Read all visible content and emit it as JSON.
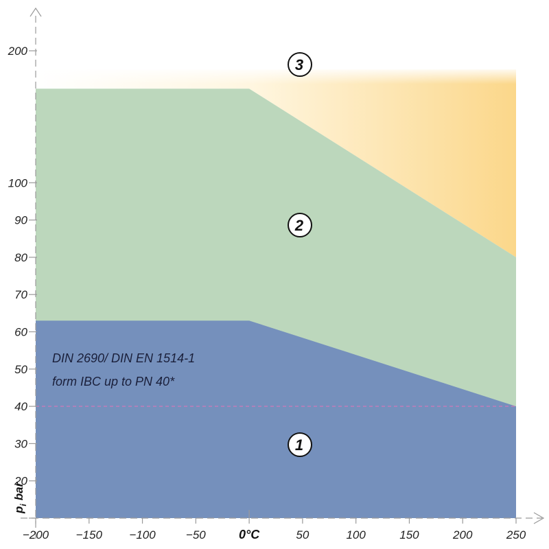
{
  "chart_data": {
    "type": "area",
    "x_ticks": [
      "−200",
      "−150",
      "−100",
      "−50",
      "0°C",
      "50",
      "100",
      "150",
      "200",
      "250"
    ],
    "x_tick_values": [
      -200,
      -150,
      -100,
      -50,
      0,
      50,
      100,
      150,
      200,
      250
    ],
    "y_ticks": [
      "20",
      "30",
      "40",
      "50",
      "60",
      "70",
      "80",
      "90",
      "100",
      "200"
    ],
    "ylabel_main": "p",
    "ylabel_sub": "i",
    "ylabel_unit": "bar",
    "regions": [
      {
        "label": "1",
        "color": "#7590bc",
        "boundary": [
          {
            "x": -200,
            "y": 63
          },
          {
            "x": 0,
            "y": 63
          },
          {
            "x": 250,
            "y": 40
          }
        ]
      },
      {
        "label": "2",
        "color": "#bcd7bc",
        "boundary": [
          {
            "x": -200,
            "y": 160
          },
          {
            "x": 0,
            "y": 160
          },
          {
            "x": 250,
            "y": 80
          }
        ]
      },
      {
        "label": "3",
        "color": "#fbe0a0",
        "boundary": [
          {
            "x": -200,
            "y": 180
          },
          {
            "x": 250,
            "y": 180
          }
        ]
      }
    ],
    "reference_line": {
      "y": 40,
      "color": "#c87ab9",
      "style": "dashed"
    },
    "annotation": [
      "DIN 2690/ DIN EN 1514-1",
      "form IBC up to PN 40*"
    ]
  }
}
